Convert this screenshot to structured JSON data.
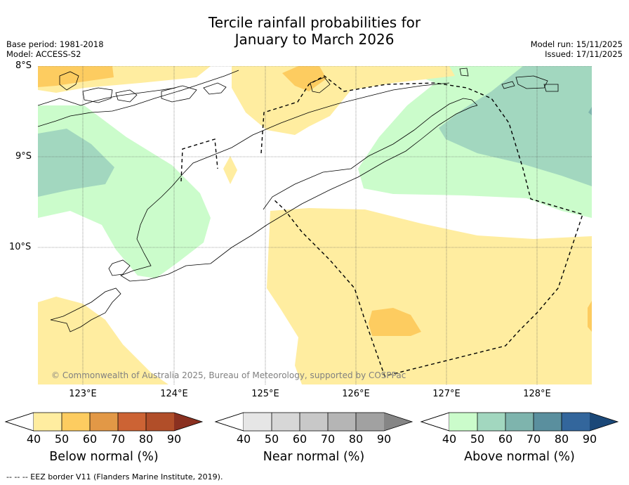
{
  "title": {
    "line1": "Tercile rainfall probabilities for",
    "line2": "January to March 2026"
  },
  "meta_left": {
    "base_period": "Base period: 1981-2018",
    "model": "Model: ACCESS-S2"
  },
  "meta_right": {
    "model_run": "Model run: 15/11/2025",
    "issued": "Issued: 17/11/2025"
  },
  "map": {
    "lat_labels": [
      "8°S",
      "9°S",
      "10°S"
    ],
    "lon_labels": [
      "123°E",
      "124°E",
      "125°E",
      "126°E",
      "127°E",
      "128°E"
    ],
    "copyright": "© Commonwealth of Australia 2025, Bureau of Meteorology, supported by COSPPac"
  },
  "colorbars": {
    "below": {
      "label": "Below normal (%)",
      "ticks": [
        "40",
        "50",
        "60",
        "70",
        "80",
        "90"
      ],
      "colors": [
        "#ffeda0",
        "#fdcc60",
        "#e29846",
        "#cc6334",
        "#b14e29",
        "#8a3020"
      ]
    },
    "near": {
      "label": "Near normal (%)",
      "ticks": [
        "40",
        "50",
        "60",
        "70",
        "80",
        "90"
      ],
      "colors": [
        "#e6e6e6",
        "#d7d7d7",
        "#c8c8c8",
        "#b5b5b5",
        "#a1a1a1",
        "#858585"
      ]
    },
    "above": {
      "label": "Above normal (%)",
      "ticks": [
        "40",
        "50",
        "60",
        "70",
        "80",
        "90"
      ],
      "colors": [
        "#cbfccb",
        "#a2d7bf",
        "#7eb4ad",
        "#5a8f9e",
        "#33669c",
        "#1b4878"
      ]
    }
  },
  "footer": "-- -- -- EEZ border V11 (Flanders Marine Institute, 2019)."
}
